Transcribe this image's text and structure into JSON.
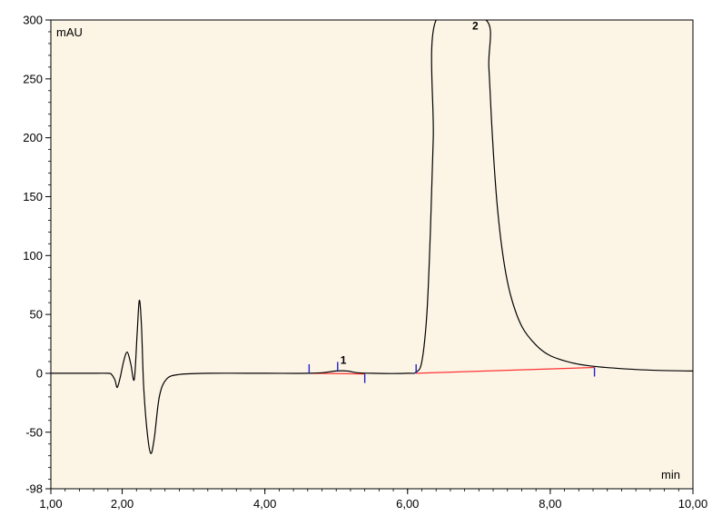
{
  "chart_data": {
    "type": "line",
    "title": "",
    "xlabel": "min",
    "ylabel": "mAU",
    "xlim": [
      1.0,
      10.0
    ],
    "ylim": [
      -98,
      300
    ],
    "xticks": [
      1.0,
      2.0,
      4.0,
      6.0,
      8.0,
      10.0
    ],
    "xtick_labels": [
      "1,00",
      "2,00",
      "4,00",
      "6,00",
      "8,00",
      "10,00"
    ],
    "yticks": [
      -98,
      -50,
      0,
      50,
      100,
      150,
      200,
      250,
      300
    ],
    "ytick_labels": [
      "-98",
      "-50",
      "0",
      "50",
      "100",
      "150",
      "200",
      "250",
      "300"
    ],
    "grid": false,
    "background_color": "#fcf5e6",
    "series": [
      {
        "color": "#000000",
        "points": [
          [
            1.0,
            0
          ],
          [
            1.5,
            0
          ],
          [
            1.8,
            0
          ],
          [
            1.85,
            -1
          ],
          [
            1.9,
            -6
          ],
          [
            1.93,
            -12
          ],
          [
            1.97,
            -4
          ],
          [
            2.02,
            10
          ],
          [
            2.07,
            18
          ],
          [
            2.12,
            8
          ],
          [
            2.17,
            -5
          ],
          [
            2.21,
            35
          ],
          [
            2.24,
            62
          ],
          [
            2.27,
            40
          ],
          [
            2.3,
            -10
          ],
          [
            2.35,
            -50
          ],
          [
            2.4,
            -68
          ],
          [
            2.45,
            -55
          ],
          [
            2.52,
            -20
          ],
          [
            2.62,
            -5
          ],
          [
            2.8,
            -1
          ],
          [
            3.2,
            0
          ],
          [
            4.0,
            0
          ],
          [
            4.6,
            0
          ],
          [
            4.8,
            0.5
          ],
          [
            5.0,
            2
          ],
          [
            5.15,
            2
          ],
          [
            5.3,
            0.5
          ],
          [
            5.5,
            0
          ],
          [
            6.0,
            0
          ],
          [
            6.12,
            1
          ],
          [
            6.2,
            10
          ],
          [
            6.27,
            50
          ],
          [
            6.32,
            120
          ],
          [
            6.36,
            200
          ],
          [
            6.4,
            300
          ],
          [
            7.1,
            300
          ],
          [
            7.14,
            260
          ],
          [
            7.19,
            200
          ],
          [
            7.26,
            140
          ],
          [
            7.35,
            95
          ],
          [
            7.45,
            65
          ],
          [
            7.6,
            40
          ],
          [
            7.8,
            24
          ],
          [
            8.0,
            15
          ],
          [
            8.3,
            9
          ],
          [
            8.6,
            6
          ],
          [
            9.0,
            4
          ],
          [
            9.5,
            2.5
          ],
          [
            10.0,
            2
          ]
        ]
      }
    ],
    "baselines": [
      {
        "color": "#ff3333",
        "points": [
          [
            4.62,
            0
          ],
          [
            5.4,
            -0.5
          ]
        ]
      },
      {
        "color": "#ff3333",
        "points": [
          [
            6.12,
            0
          ],
          [
            8.62,
            5
          ]
        ]
      }
    ],
    "integration_markers": {
      "color": "#2222cc",
      "marks": [
        {
          "x": 4.62,
          "y": 0,
          "dir": "up"
        },
        {
          "x": 5.02,
          "y": 2,
          "dir": "up"
        },
        {
          "x": 5.4,
          "y": -0.5,
          "dir": "down"
        },
        {
          "x": 6.12,
          "y": 0,
          "dir": "up"
        },
        {
          "x": 8.62,
          "y": 5,
          "dir": "down"
        }
      ]
    },
    "peak_labels": [
      {
        "text": "1",
        "x": 5.1,
        "y": 8
      },
      {
        "text": "2",
        "x": 6.95,
        "y": 292
      }
    ]
  }
}
